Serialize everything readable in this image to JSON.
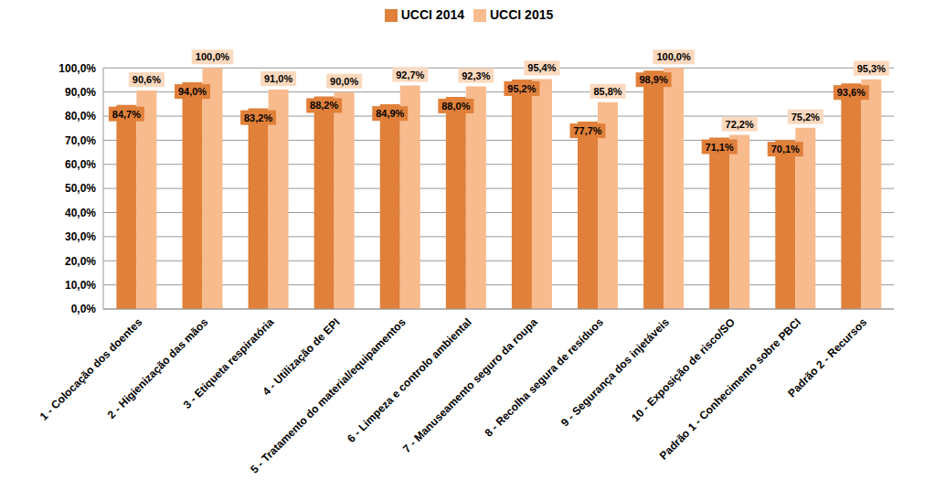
{
  "chart_data": {
    "type": "bar",
    "categories": [
      "1 - Colocação dos doentes",
      "2 - Higienização das mãos",
      "3 - Etiqueta respiratória",
      "4 - Utilização de EPI",
      "5 - Tratamento do material/equipamentos",
      "6 - Limpeza e controlo ambiental",
      "7 - Manuseamento seguro da roupa",
      "8 - Recolha segura de resíduos",
      "9 - Segurança dos injetáveis",
      "10 - Exposição de risco/SO",
      "Padrão 1 - Conhecimento sobre PBCI",
      "Padrão 2 - Recursos"
    ],
    "series": [
      {
        "name": "UCCI 2014",
        "color": "#E0803A",
        "values": [
          84.7,
          94.0,
          83.2,
          88.2,
          84.9,
          88.0,
          95.2,
          77.7,
          98.9,
          71.1,
          70.1,
          93.6
        ],
        "value_labels": [
          "84,7%",
          "94,0%",
          "83,2%",
          "88,2%",
          "84,9%",
          "88,0%",
          "95,2%",
          "77,7%",
          "98,9%",
          "71,1%",
          "70,1%",
          "93,6%"
        ]
      },
      {
        "name": "UCCI 2015",
        "color": "#F8BB8E",
        "values": [
          90.6,
          100.0,
          91.0,
          90.0,
          92.7,
          92.3,
          95.4,
          85.8,
          100.0,
          72.2,
          75.2,
          95.3
        ],
        "value_labels": [
          "90,6%",
          "100,0%",
          "91,0%",
          "90,0%",
          "92,7%",
          "92,3%",
          "95,4%",
          "85,8%",
          "100,0%",
          "72,2%",
          "75,2%",
          "95,3%"
        ]
      }
    ],
    "ylim": [
      0,
      100
    ],
    "yticks": [
      {
        "value": 0,
        "label": "0,0%"
      },
      {
        "value": 10,
        "label": "10,0%"
      },
      {
        "value": 20,
        "label": "20,0%"
      },
      {
        "value": 30,
        "label": "30,0%"
      },
      {
        "value": 40,
        "label": "40,0%"
      },
      {
        "value": 50,
        "label": "50,0%"
      },
      {
        "value": 60,
        "label": "60,0%"
      },
      {
        "value": 70,
        "label": "70,0%"
      },
      {
        "value": 80,
        "label": "80,0%"
      },
      {
        "value": 90,
        "label": "90,0%"
      },
      {
        "value": 100,
        "label": "100,0%"
      }
    ],
    "grid": true,
    "legend": "top",
    "data_labels": true
  }
}
